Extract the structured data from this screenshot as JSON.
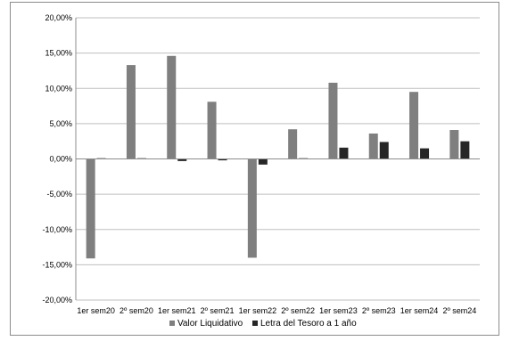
{
  "chart_data": {
    "type": "bar",
    "categories": [
      "1er sem20",
      "2º sem20",
      "1er sem21",
      "2º sem21",
      "1er sem22",
      "2º sem22",
      "1er sem23",
      "2º sem23",
      "1er sem24",
      "2º sem24"
    ],
    "series": [
      {
        "name": "Valor Liquidativo",
        "color": "#7f7f7f",
        "values": [
          -14.1,
          13.3,
          14.6,
          8.1,
          -14.0,
          4.2,
          10.8,
          3.6,
          9.5,
          4.1
        ]
      },
      {
        "name": "Letra del Tesoro a 1 año",
        "color": "#262626",
        "values": [
          0.1,
          0.1,
          -0.3,
          -0.2,
          -0.8,
          0.1,
          1.6,
          2.4,
          1.5,
          2.5
        ]
      }
    ],
    "ylim": [
      -20,
      20
    ],
    "ytick_step": 5,
    "ytick_labels": [
      "-20,00%",
      "-15,00%",
      "-10,00%",
      "-5,00%",
      "0,00%",
      "5,00%",
      "10,00%",
      "15,00%",
      "20,00%"
    ],
    "grid": true,
    "legend_position": "bottom"
  }
}
